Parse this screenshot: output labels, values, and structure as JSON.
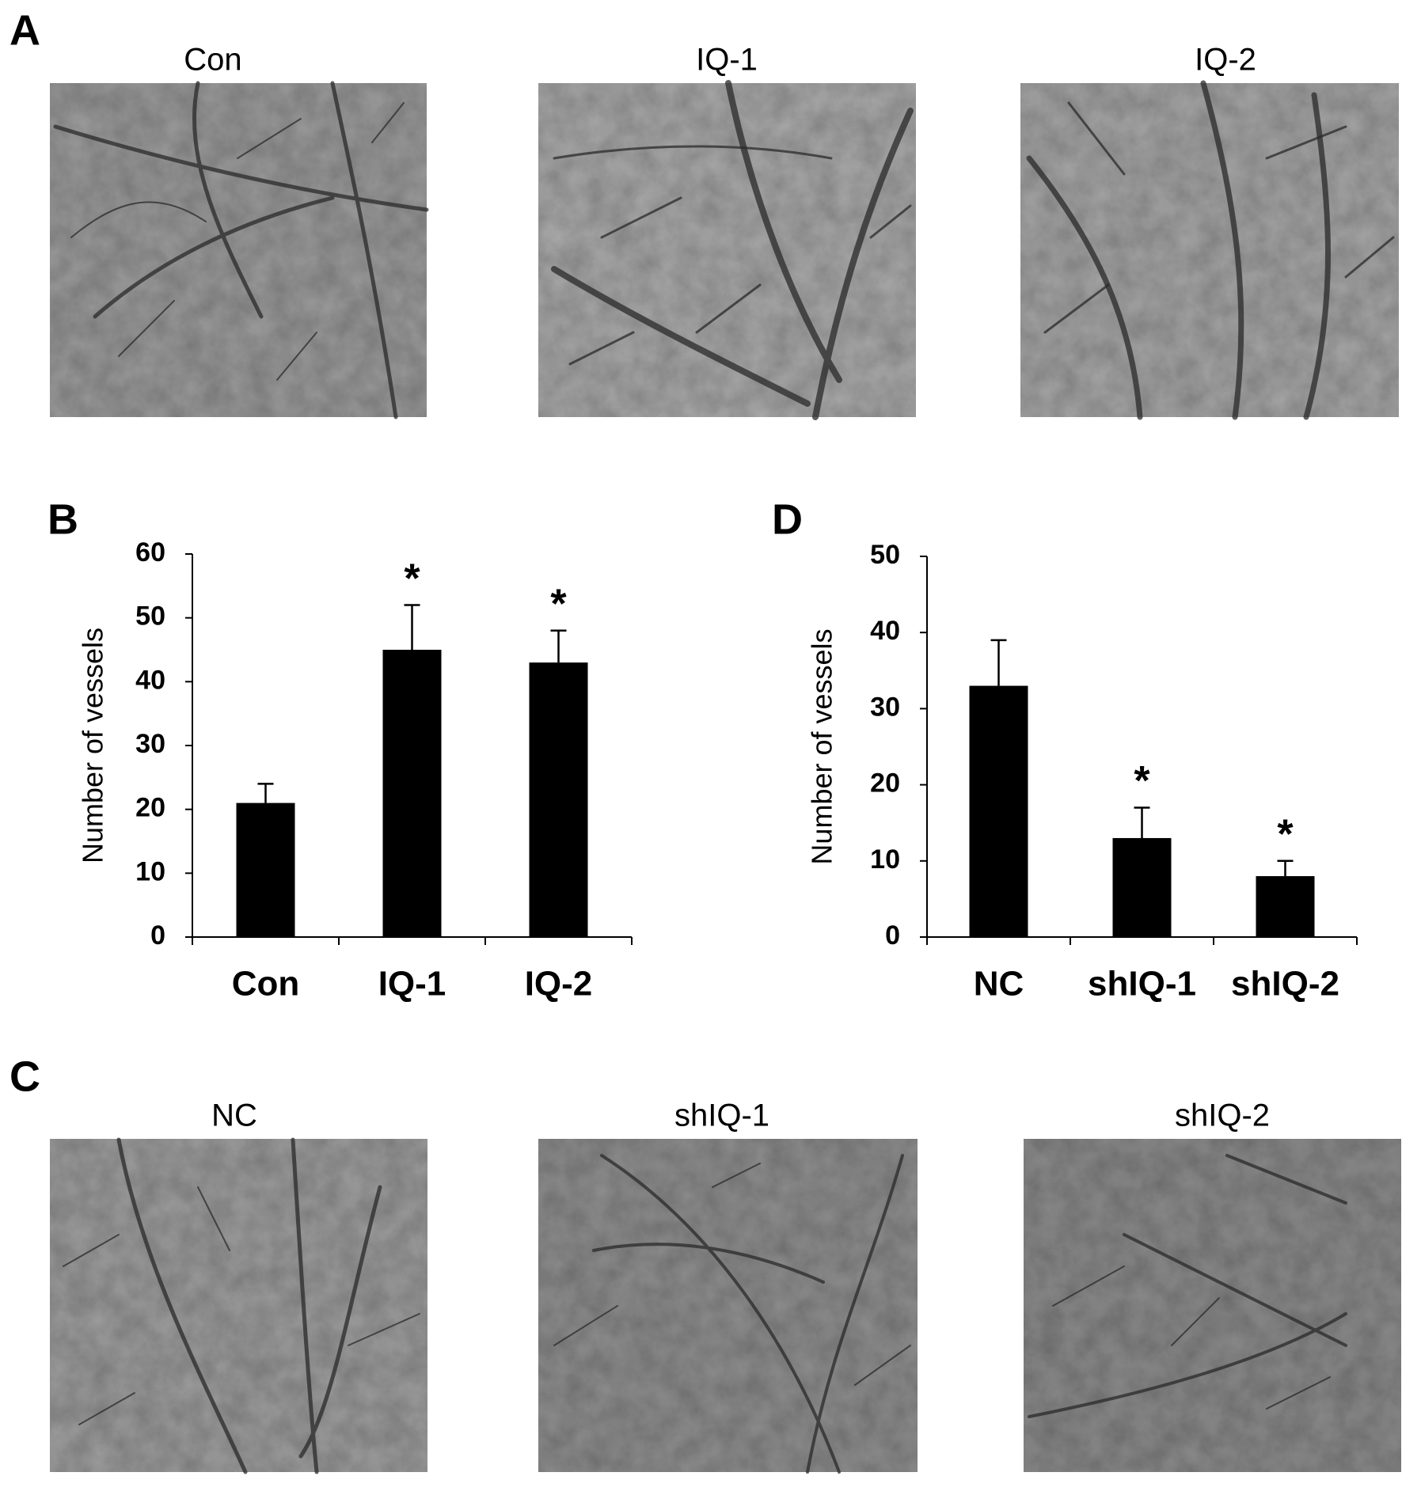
{
  "panel_labels": [
    "A",
    "B",
    "C",
    "D"
  ],
  "photos_a": {
    "captions": [
      "Con",
      "IQ-1",
      "IQ-2"
    ]
  },
  "photos_c": {
    "captions": [
      "NC",
      "shIQ-1",
      "shIQ-2"
    ]
  },
  "chart_data": [
    {
      "type": "bar",
      "ylabel": "Number of vessels",
      "categories": [
        "Con",
        "IQ-1",
        "IQ-2"
      ],
      "values": [
        21,
        45,
        43
      ],
      "errors": [
        3,
        7,
        5
      ],
      "significance": [
        null,
        "*",
        "*"
      ],
      "color": "#000000",
      "ylim": [
        0,
        60
      ],
      "yticks": [
        0,
        10,
        20,
        30,
        40,
        50,
        60
      ]
    },
    {
      "type": "bar",
      "ylabel": "Number of vessels",
      "categories": [
        "NC",
        "shIQ-1",
        "shIQ-2"
      ],
      "values": [
        33,
        13,
        8
      ],
      "errors": [
        6,
        4,
        2
      ],
      "significance": [
        null,
        "*",
        "*"
      ],
      "color": "#000000",
      "ylim": [
        0,
        50
      ],
      "yticks": [
        0,
        10,
        20,
        30,
        40,
        50
      ]
    }
  ]
}
